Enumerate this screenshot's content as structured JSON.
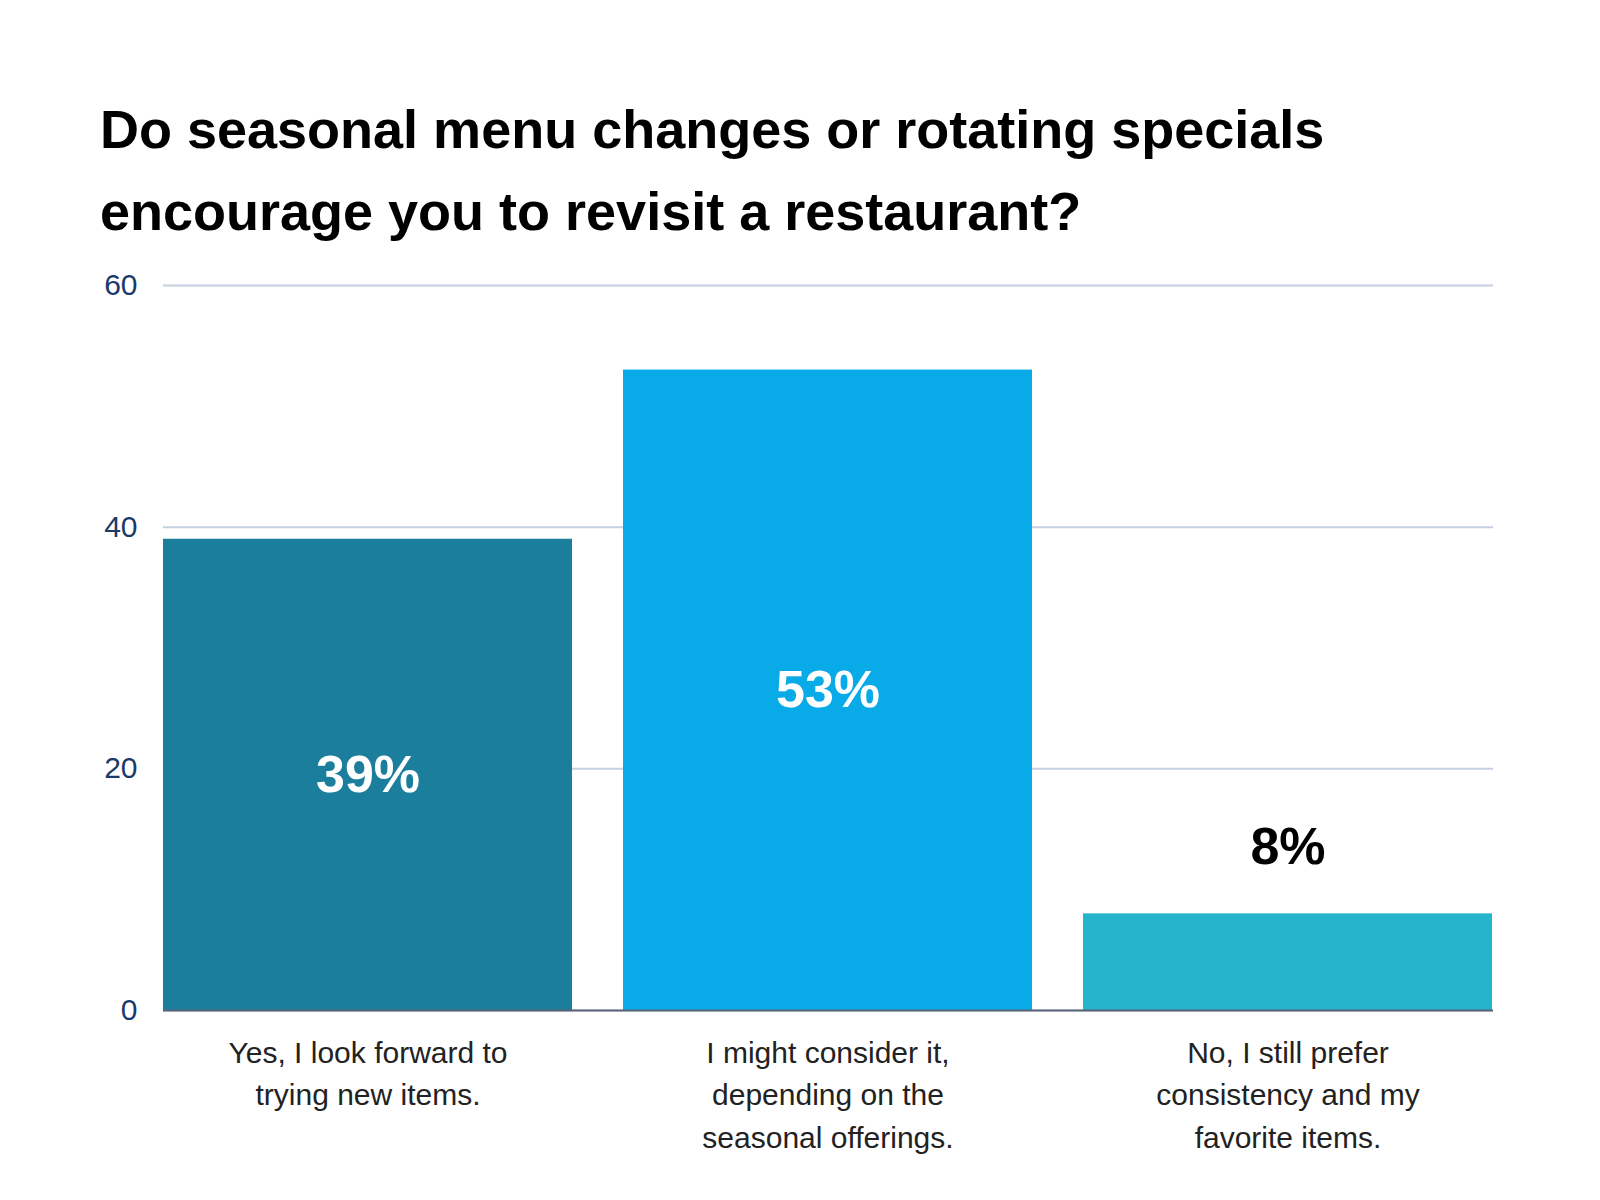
{
  "chart_data": {
    "type": "bar",
    "title": "Do seasonal menu changes or rotating specials encourage you to revisit a restaurant?",
    "categories": [
      "Yes, I look forward to trying new items.",
      "I might consider it, depending on the seasonal offerings.",
      "No, I still prefer consistency and my favorite items."
    ],
    "values": [
      39,
      53,
      8
    ],
    "value_labels": [
      "39%",
      "53%",
      "8%"
    ],
    "colors": [
      "#1b7e9c",
      "#08aae8",
      "#24b5cc"
    ],
    "ylim": [
      0,
      60
    ],
    "yticks": [
      0,
      20,
      40,
      60
    ],
    "grid": true,
    "data_labels": true
  }
}
